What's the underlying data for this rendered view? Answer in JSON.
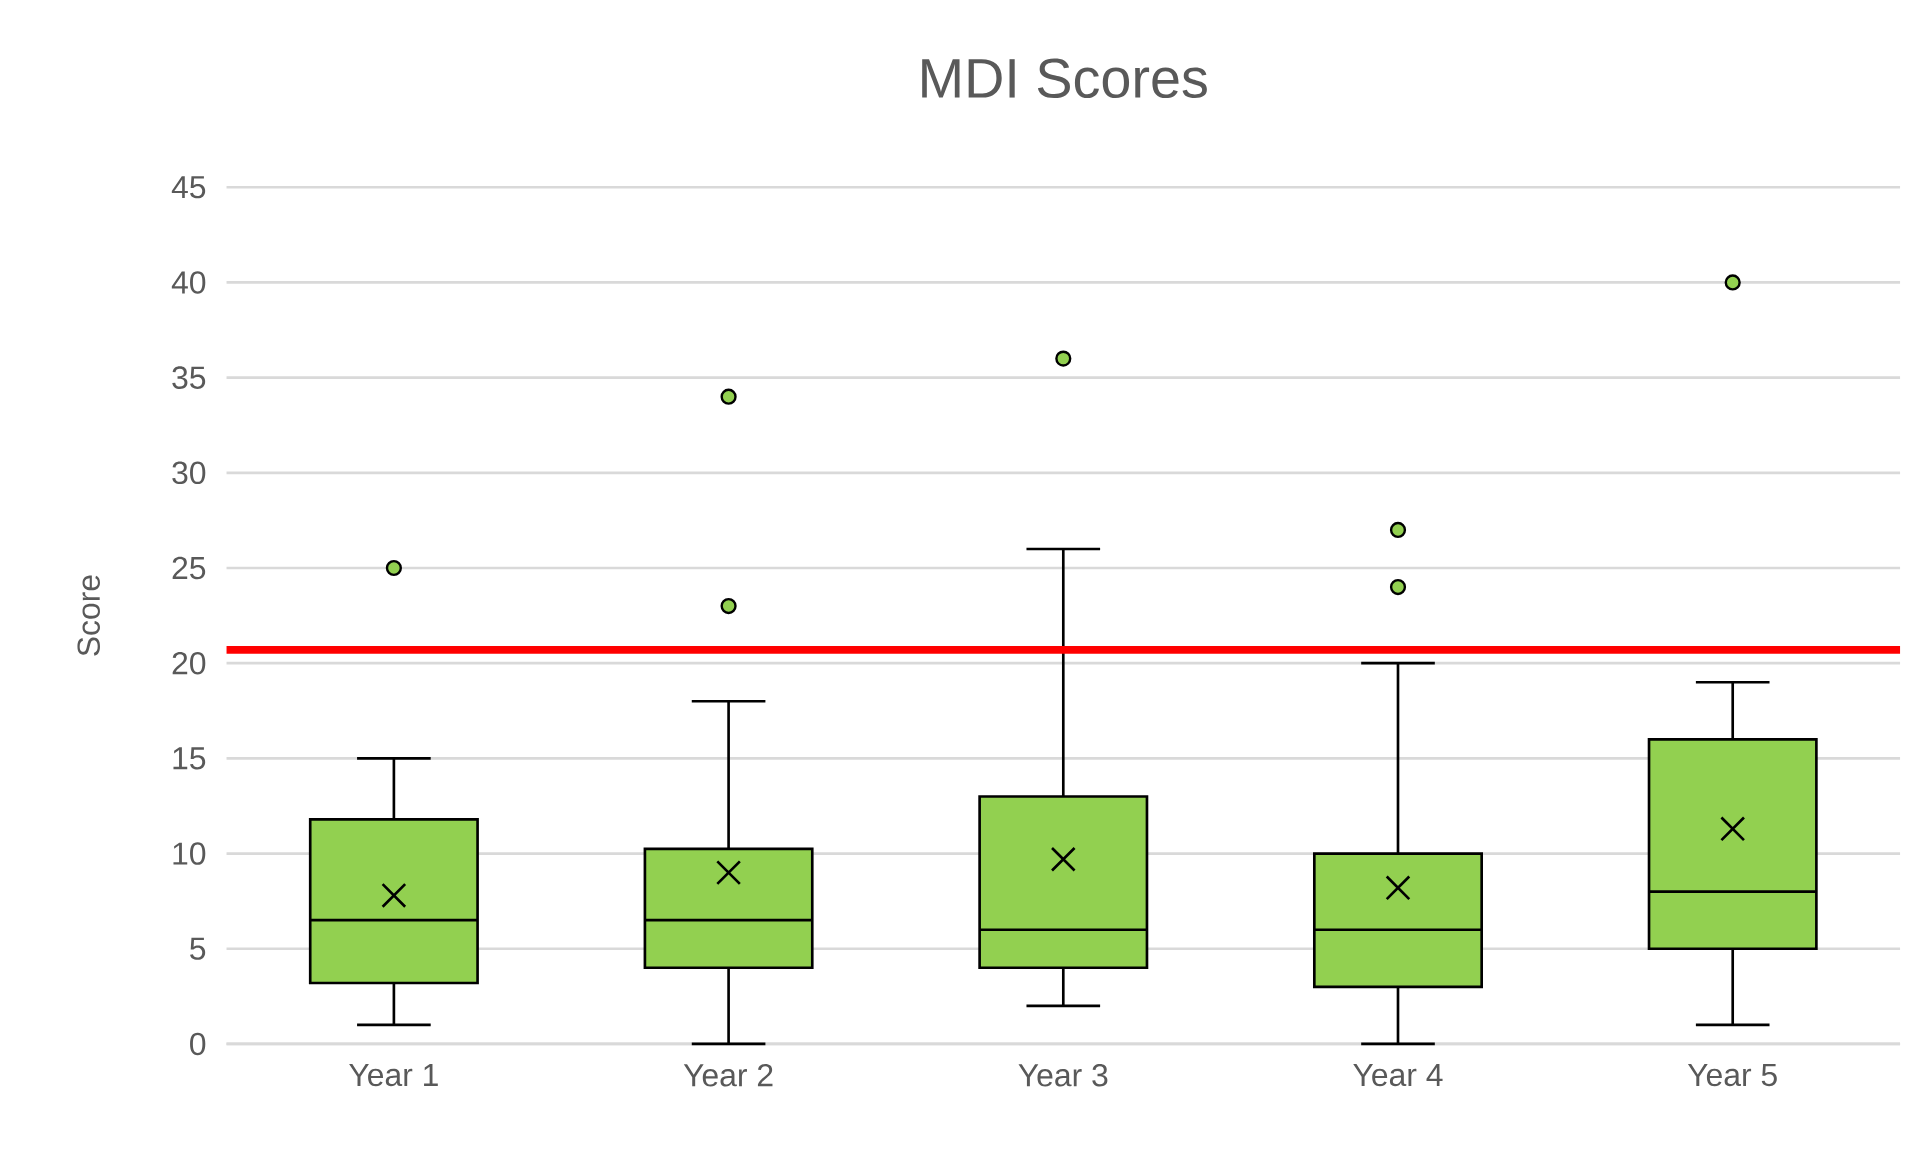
{
  "chart_data": {
    "type": "box",
    "title": "MDI Scores",
    "ylabel": "Score",
    "categories": [
      "Year 1",
      "Year 2",
      "Year 3",
      "Year 4",
      "Year 5"
    ],
    "color": "#92d050",
    "boxes": [
      {
        "low": 1,
        "q1": 3.2,
        "median": 6.5,
        "q3": 11.8,
        "high": 15,
        "mean": 7.8,
        "outliers": [
          25
        ]
      },
      {
        "low": 0,
        "q1": 4,
        "median": 6.5,
        "q3": 10.25,
        "high": 18,
        "mean": 9.0,
        "outliers": [
          34,
          23
        ]
      },
      {
        "low": 2,
        "q1": 4,
        "median": 6,
        "q3": 13,
        "high": 26,
        "mean": 9.7,
        "outliers": [
          36
        ]
      },
      {
        "low": 0,
        "q1": 3,
        "median": 6,
        "q3": 10,
        "high": 20,
        "mean": 8.2,
        "outliers": [
          27,
          24
        ]
      },
      {
        "low": 1,
        "q1": 5,
        "median": 8,
        "q3": 16,
        "high": 19,
        "mean": 11.3,
        "outliers": [
          40
        ]
      }
    ],
    "ylim": [
      0,
      45
    ],
    "yticks": [
      0,
      5,
      10,
      15,
      20,
      25,
      30,
      35,
      40,
      45
    ],
    "grid": "y",
    "ref_lines": [
      {
        "axis": "y",
        "value": 20.7,
        "color": "#ff0000"
      }
    ]
  }
}
